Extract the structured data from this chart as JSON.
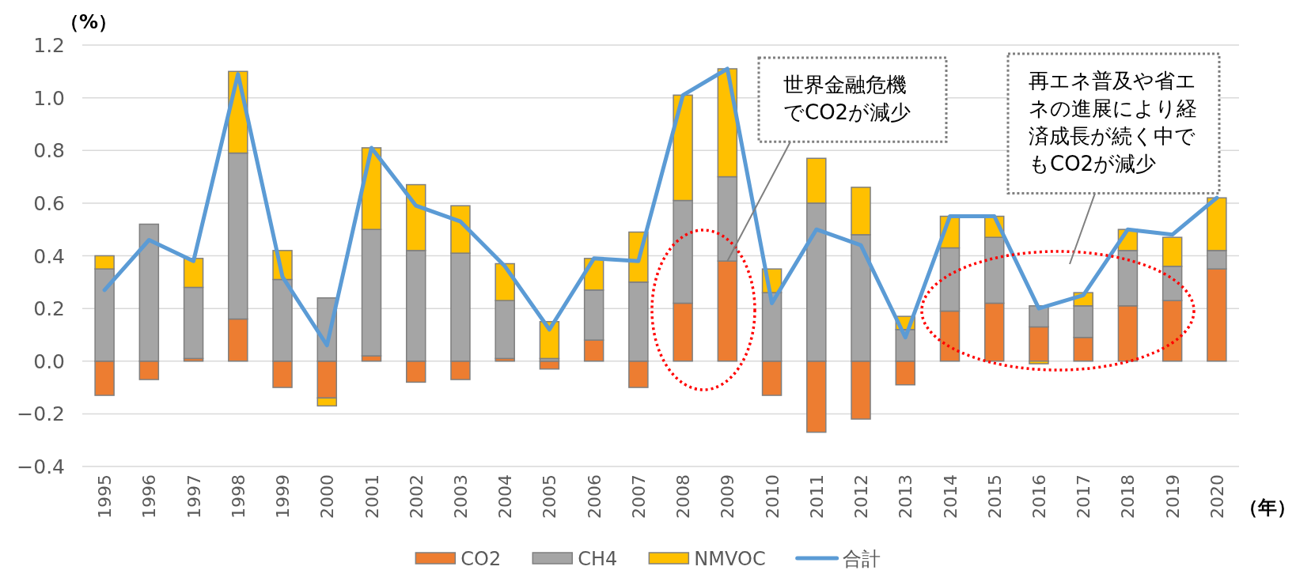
{
  "chart_data": {
    "type": "bar",
    "stacked": true,
    "ylabel": "（%）",
    "xlabel": "（年）",
    "categories": [
      "1995",
      "1996",
      "1997",
      "1998",
      "1999",
      "2000",
      "2001",
      "2002",
      "2003",
      "2004",
      "2005",
      "2006",
      "2007",
      "2008",
      "2009",
      "2010",
      "2011",
      "2012",
      "2013",
      "2014",
      "2015",
      "2016",
      "2017",
      "2018",
      "2019",
      "2020"
    ],
    "series": [
      {
        "name": "CO2",
        "color": "#ed7d31",
        "values": [
          -0.13,
          -0.07,
          0.01,
          0.16,
          -0.1,
          -0.14,
          0.02,
          -0.08,
          -0.07,
          0.01,
          -0.03,
          0.08,
          -0.1,
          0.22,
          0.38,
          -0.13,
          -0.27,
          -0.22,
          -0.09,
          0.19,
          0.22,
          0.13,
          0.09,
          0.21,
          0.23,
          0.35
        ]
      },
      {
        "name": "CH4",
        "color": "#a5a5a5",
        "values": [
          0.35,
          0.52,
          0.27,
          0.63,
          0.31,
          0.24,
          0.48,
          0.42,
          0.41,
          0.22,
          0.01,
          0.19,
          0.3,
          0.39,
          0.32,
          0.26,
          0.6,
          0.48,
          0.12,
          0.24,
          0.25,
          0.08,
          0.12,
          0.21,
          0.13,
          0.07
        ]
      },
      {
        "name": "NMVOC",
        "color": "#ffc000",
        "values": [
          0.05,
          0,
          0.11,
          0.31,
          0.11,
          -0.03,
          0.31,
          0.25,
          0.18,
          0.14,
          0.14,
          0.12,
          0.19,
          0.4,
          0.41,
          0.09,
          0.17,
          0.18,
          0.05,
          0.12,
          0.08,
          -0.01,
          0.05,
          0.08,
          0.11,
          0.2
        ]
      },
      {
        "name": "合計",
        "type": "line",
        "color": "#5b9bd5",
        "values": [
          0.27,
          0.46,
          0.38,
          1.09,
          0.32,
          0.06,
          0.81,
          0.59,
          0.53,
          0.36,
          0.12,
          0.39,
          0.38,
          1.01,
          1.11,
          0.22,
          0.5,
          0.44,
          0.09,
          0.55,
          0.55,
          0.2,
          0.25,
          0.5,
          0.48,
          0.62
        ]
      }
    ],
    "ylim": [
      -0.4,
      1.2
    ],
    "yticks": [
      {
        "value": -0.4,
        "label": "−0.4"
      },
      {
        "value": -0.2,
        "label": "−0.2"
      },
      {
        "value": 0,
        "label": "0.0"
      },
      0.2,
      0.4,
      0.6,
      0.8,
      {
        "value": 1,
        "label": "1.0"
      },
      1.2
    ],
    "grid": "y",
    "legend": "bottom",
    "annotations": [
      {
        "text": "世界金融危機でCO2が減少",
        "x": "2009",
        "y": 0.38
      },
      "再エネ普及や省エネの進展により経済成長が続く中でもCO2が減少"
    ]
  }
}
